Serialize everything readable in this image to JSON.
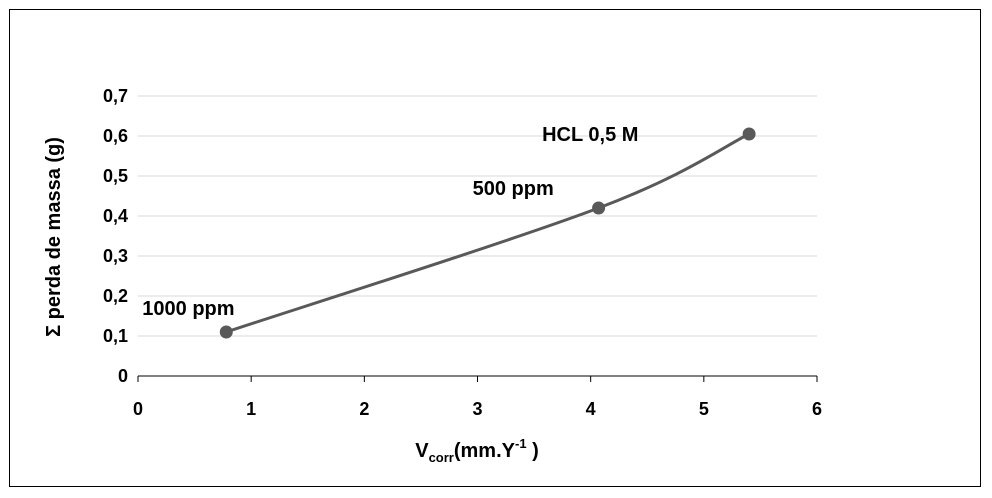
{
  "chart_data": {
    "type": "line",
    "title": "",
    "xlabel": {
      "base": "V",
      "subscript": "corr",
      "middle": "(mm.Y",
      "superscript": "-1",
      "end": " )"
    },
    "ylabel": "Σ perda de massa (g)",
    "xlim": [
      0,
      6
    ],
    "ylim": [
      0,
      0.7
    ],
    "x_ticks": [
      "0",
      "1",
      "2",
      "3",
      "4",
      "5",
      "6"
    ],
    "y_ticks": [
      "0",
      "0,1",
      "0,2",
      "0,3",
      "0,4",
      "0,5",
      "0,6",
      "0,7"
    ],
    "grid": true,
    "smooth": true,
    "series": [
      {
        "color": "#595959",
        "points": [
          {
            "x": 0.78,
            "y": 0.11,
            "label": "1000 ppm"
          },
          {
            "x": 4.07,
            "y": 0.42,
            "label": "500 ppm"
          },
          {
            "x": 5.4,
            "y": 0.605,
            "label": "HCL 0,5 M"
          }
        ]
      }
    ]
  }
}
